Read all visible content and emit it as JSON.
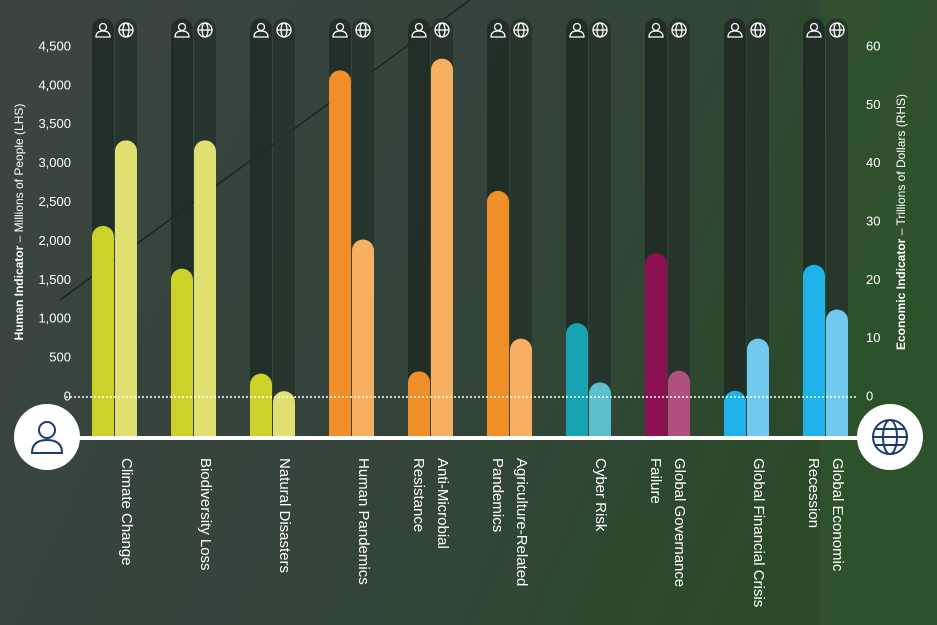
{
  "chart_data": {
    "type": "bar",
    "categories": [
      "Climate Change",
      "Biodiversity Loss",
      "Natural Disasters",
      "Human Pandemics",
      "Anti-Microbial Resistance",
      "Agriculture-Related Pandemics",
      "Cyber Risk",
      "Global Governance Failure",
      "Global Financial Crisis",
      "Global Economic Recession"
    ],
    "series": [
      {
        "axis": "y",
        "colors": [
          "#cdd22a",
          "#cdd22a",
          "#cdd22a",
          "#f08f28",
          "#f08f28",
          "#f08f28",
          "#17a3b2",
          "#8c1052",
          "#1fb2ea",
          "#1fb2ea"
        ],
        "values": [
          2200,
          1650,
          300,
          4200,
          330,
          2650,
          950,
          1850,
          80,
          1700
        ]
      },
      {
        "axis": "y2",
        "colors": [
          "#dfe070",
          "#dfe070",
          "#dfe070",
          "#f7b062",
          "#f7b062",
          "#f7b062",
          "#5cc0cc",
          "#b0507f",
          "#72c9f0",
          "#72c9f0"
        ],
        "values": [
          44,
          44,
          1,
          27,
          58,
          10,
          2.5,
          4.5,
          10,
          15
        ]
      }
    ],
    "ylabel": {
      "bold": "Human Indicator",
      "rest": " – Millions of People (LHS)"
    },
    "y2label": {
      "bold": "Economic Indicator",
      "rest": " – Trillions of Dollars (RHS)"
    },
    "ylim": [
      0,
      4500
    ],
    "yticks": [
      0,
      500,
      {
        "value": 1000,
        "label": "1,000"
      },
      {
        "value": 1500,
        "label": "1,500"
      },
      {
        "value": 2000,
        "label": "2,000"
      },
      {
        "value": 2500,
        "label": "2,500"
      },
      {
        "value": 3000,
        "label": "3,000"
      },
      {
        "value": 3500,
        "label": "3,500"
      },
      {
        "value": 4000,
        "label": "4,000"
      },
      {
        "value": 4500,
        "label": "4,500"
      }
    ],
    "y2lim": [
      0,
      60
    ],
    "y2ticks": [
      0,
      10,
      20,
      30,
      40,
      50,
      60
    ]
  }
}
